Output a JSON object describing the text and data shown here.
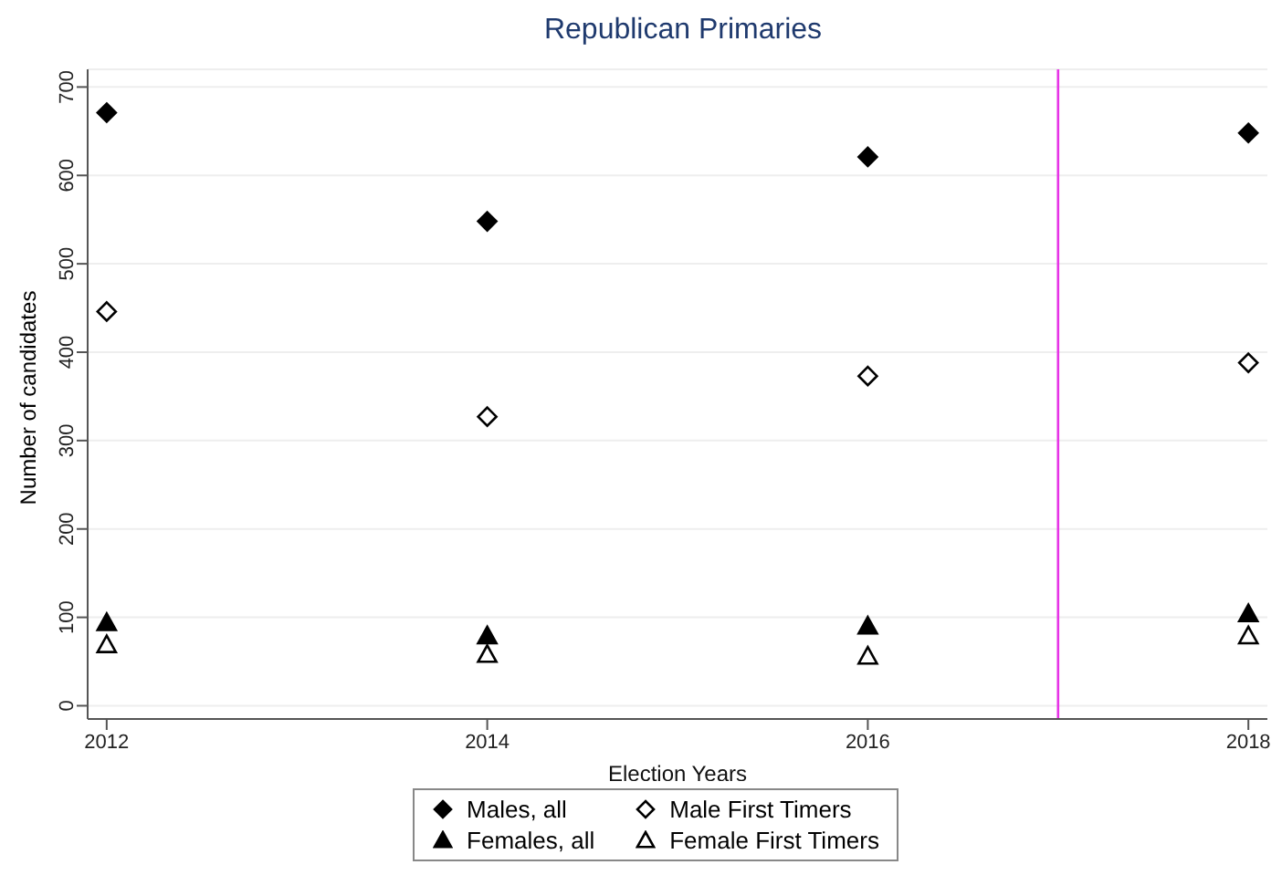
{
  "chart_data": {
    "type": "scatter",
    "title": "Republican Primaries",
    "xlabel": "Election Years",
    "ylabel": "Number of candidates",
    "x": [
      2012,
      2014,
      2016,
      2018
    ],
    "series": [
      {
        "name": "Males, all",
        "color": "#000000",
        "marker": "diamond",
        "values": [
          671,
          548,
          621,
          648
        ]
      },
      {
        "name": "Male First Timers",
        "color": "#000000",
        "marker": "diamond",
        "values": [
          446,
          327,
          373,
          388
        ]
      },
      {
        "name": "Females, all",
        "color": "#000000",
        "marker": "triangle",
        "values": [
          94,
          79,
          90,
          104
        ]
      },
      {
        "name": "Female First Timers",
        "color": "#000000",
        "marker": "triangle",
        "values": [
          69,
          58,
          56,
          79
        ]
      }
    ],
    "xlim": [
      2011.9,
      2018.1
    ],
    "xticks": [
      2012,
      2014,
      2016,
      2018
    ],
    "ylim": [
      -15,
      720
    ],
    "yticks": [
      0,
      100,
      200,
      300,
      400,
      500,
      600,
      700
    ],
    "ref_lines": [
      {
        "axis": "x",
        "value": 2017,
        "color": "#e633e6"
      }
    ],
    "grid": "y",
    "legend": "bottom"
  }
}
